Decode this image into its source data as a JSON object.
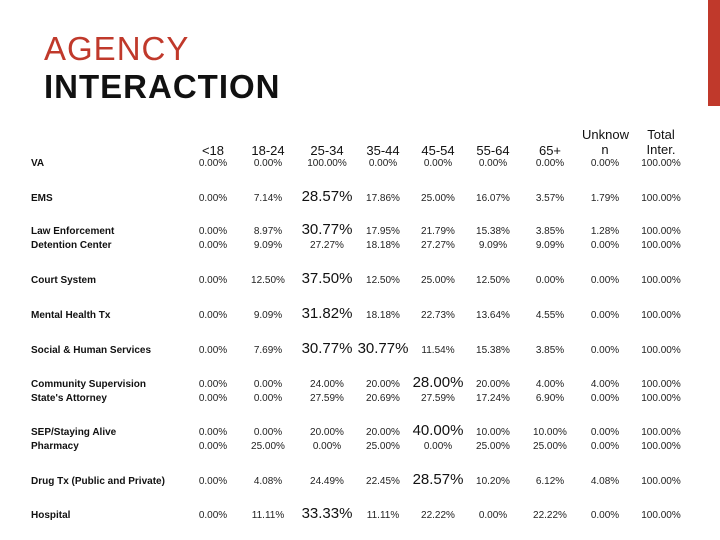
{
  "title": {
    "line1": "AGENCY",
    "line2": "INTERACTION"
  },
  "columns": [
    "<18",
    "18-24",
    "25-34",
    "35-44",
    "45-54",
    "55-64",
    "65+",
    "Unknow n",
    "Total Inter."
  ],
  "rows": [
    {
      "label": "VA",
      "values": [
        "0.00%",
        "0.00%",
        "100.00%",
        "0.00%",
        "0.00%",
        "0.00%",
        "0.00%",
        "0.00%",
        "100.00%"
      ]
    },
    {
      "label": "EMS",
      "values": [
        "0.00%",
        "7.14%",
        "28.57%",
        "17.86%",
        "25.00%",
        "16.07%",
        "3.57%",
        "1.79%",
        "100.00%"
      ]
    },
    {
      "label": "Law Enforcement",
      "values": [
        "0.00%",
        "8.97%",
        "30.77%",
        "17.95%",
        "21.79%",
        "15.38%",
        "3.85%",
        "1.28%",
        "100.00%"
      ]
    },
    {
      "label": "Detention Center",
      "values": [
        "0.00%",
        "9.09%",
        "27.27%",
        "18.18%",
        "27.27%",
        "9.09%",
        "9.09%",
        "0.00%",
        "100.00%"
      ]
    },
    {
      "label": "Court System",
      "values": [
        "0.00%",
        "12.50%",
        "37.50%",
        "12.50%",
        "25.00%",
        "12.50%",
        "0.00%",
        "0.00%",
        "100.00%"
      ]
    },
    {
      "label": "Mental Health Tx",
      "values": [
        "0.00%",
        "9.09%",
        "31.82%",
        "18.18%",
        "22.73%",
        "13.64%",
        "4.55%",
        "0.00%",
        "100.00%"
      ]
    },
    {
      "label": "Social & Human Services",
      "values": [
        "0.00%",
        "7.69%",
        "30.77%",
        "30.77%",
        "11.54%",
        "15.38%",
        "3.85%",
        "0.00%",
        "100.00%"
      ]
    },
    {
      "label": "Community Supervision",
      "values": [
        "0.00%",
        "0.00%",
        "24.00%",
        "20.00%",
        "28.00%",
        "20.00%",
        "4.00%",
        "4.00%",
        "100.00%"
      ]
    },
    {
      "label": "State's Attorney",
      "values": [
        "0.00%",
        "0.00%",
        "27.59%",
        "20.69%",
        "27.59%",
        "17.24%",
        "6.90%",
        "0.00%",
        "100.00%"
      ]
    },
    {
      "label": "SEP/Staying Alive",
      "values": [
        "0.00%",
        "0.00%",
        "20.00%",
        "20.00%",
        "40.00%",
        "10.00%",
        "10.00%",
        "0.00%",
        "100.00%"
      ]
    },
    {
      "label": "Pharmacy",
      "values": [
        "0.00%",
        "25.00%",
        "0.00%",
        "25.00%",
        "0.00%",
        "25.00%",
        "25.00%",
        "0.00%",
        "100.00%"
      ]
    },
    {
      "label": "Drug Tx (Public and Private)",
      "values": [
        "0.00%",
        "4.08%",
        "24.49%",
        "22.45%",
        "28.57%",
        "10.20%",
        "6.12%",
        "4.08%",
        "100.00%"
      ]
    },
    {
      "label": "Hospital",
      "values": [
        "0.00%",
        "11.11%",
        "33.33%",
        "11.11%",
        "22.22%",
        "0.00%",
        "22.22%",
        "0.00%",
        "100.00%"
      ]
    }
  ],
  "highlight_color": "#c0392b"
}
